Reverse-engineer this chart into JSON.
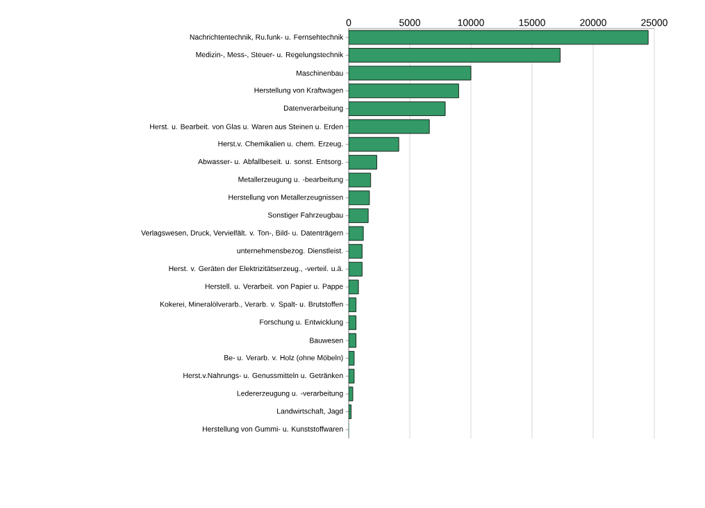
{
  "chart_data": {
    "type": "bar",
    "orientation": "horizontal",
    "categories": [
      "Nachrichtentechnik, Ru.funk- u. Fernsehtechnik",
      "Medizin-, Mess-, Steuer- u. Regelungstechnik",
      "Maschinenbau",
      "Herstellung von Kraftwagen",
      "Datenverarbeitung",
      "Herst. u. Bearbeit. von Glas u. Waren aus Steinen u. Erden",
      "Herst.v. Chemikalien u. chem. Erzeug.",
      "Abwasser- u. Abfallbeseit. u. sonst. Entsorg.",
      "Metallerzeugung u. -bearbeitung",
      "Herstellung von Metallerzeugnissen",
      "Sonstiger Fahrzeugbau",
      "Verlagswesen, Druck, Vervielfält. v. Ton-, Bild- u. Datenträgern",
      "unternehmensbezog. Dienstleist.",
      "Herst. v. Geräten der Elektrizitätserzeug., -verteil. u.ä.",
      "Herstell. u. Verarbeit. von Papier u. Pappe",
      "Kokerei, Mineralölverarb., Verarb. v. Spalt- u. Brutstoffen",
      "Forschung u. Entwicklung",
      "Bauwesen",
      "Be- u. Verarb. v. Holz (ohne Möbeln)",
      "Herst.v.Nahrungs- u. Genussmitteln u. Getränken",
      "Ledererzeugung u. -verarbeitung",
      "Landwirtschaft, Jagd",
      "Herstellung von Gummi- u. Kunststoffwaren"
    ],
    "values": [
      24500,
      17300,
      10000,
      9000,
      7900,
      6600,
      4100,
      2300,
      1800,
      1700,
      1600,
      1200,
      1100,
      1100,
      800,
      600,
      600,
      600,
      450,
      450,
      340,
      200,
      0
    ],
    "color": "#339966",
    "xlim": [
      0,
      25000
    ],
    "xticks": [
      0,
      5000,
      10000,
      15000,
      20000,
      25000
    ],
    "grid": "x"
  }
}
